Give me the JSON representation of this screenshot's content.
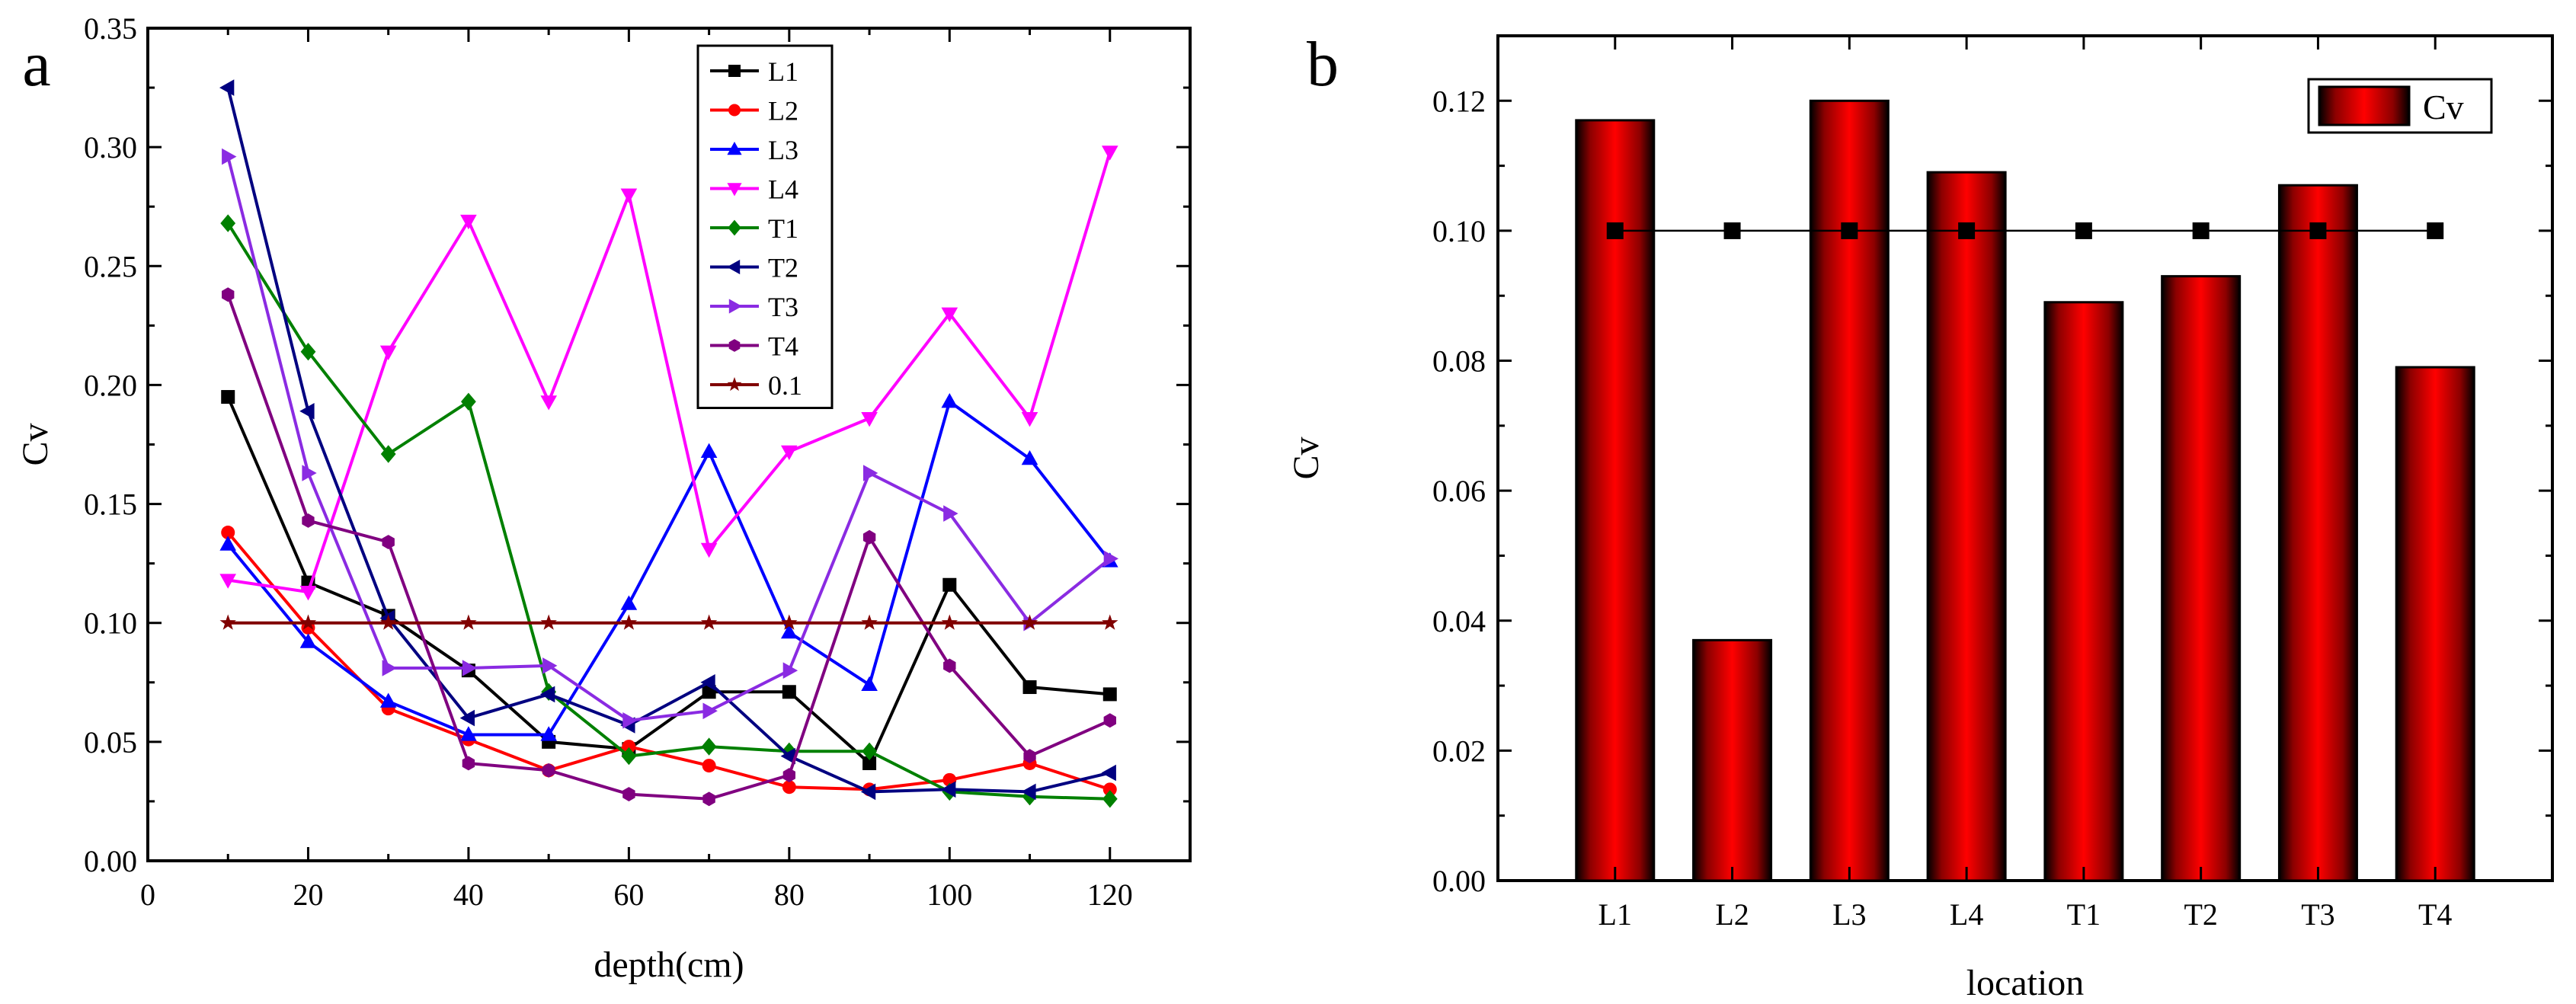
{
  "chart_data": [
    {
      "type": "line",
      "panel_label": "a",
      "xlabel": "depth(cm)",
      "ylabel": "Cv",
      "xlim": [
        0,
        130
      ],
      "ylim": [
        0,
        0.35
      ],
      "xticks": [
        0,
        20,
        40,
        60,
        80,
        100,
        120
      ],
      "xtick_labels": [
        "0",
        "20",
        "40",
        "60",
        "80",
        "100",
        "120"
      ],
      "yticks": [
        0,
        0.05,
        0.1,
        0.15,
        0.2,
        0.25,
        0.3,
        0.35
      ],
      "ytick_labels": [
        "0.00",
        "0.05",
        "0.10",
        "0.15",
        "0.20",
        "0.25",
        "0.30",
        "0.35"
      ],
      "x": [
        10,
        20,
        30,
        40,
        50,
        60,
        70,
        80,
        90,
        100,
        110,
        120
      ],
      "legend_position": "top-center",
      "series": [
        {
          "name": "L1",
          "color": "#000000",
          "marker": "square",
          "values": [
            0.195,
            0.117,
            0.103,
            0.08,
            0.05,
            0.047,
            0.071,
            0.071,
            0.041,
            0.116,
            0.073,
            0.07
          ]
        },
        {
          "name": "L2",
          "color": "#ff0000",
          "marker": "circle",
          "values": [
            0.138,
            0.098,
            0.064,
            0.051,
            0.038,
            0.048,
            0.04,
            0.031,
            0.03,
            0.034,
            0.041,
            0.03
          ]
        },
        {
          "name": "L3",
          "color": "#0000ff",
          "marker": "triangle-up",
          "values": [
            0.133,
            0.092,
            0.067,
            0.053,
            0.053,
            0.108,
            0.172,
            0.096,
            0.074,
            0.193,
            0.169,
            0.126
          ]
        },
        {
          "name": "L4",
          "color": "#ff00ff",
          "marker": "triangle-down",
          "values": [
            0.118,
            0.113,
            0.214,
            0.269,
            0.193,
            0.28,
            0.131,
            0.172,
            0.186,
            0.23,
            0.186,
            0.298
          ]
        },
        {
          "name": "T1",
          "color": "#008000",
          "marker": "diamond",
          "values": [
            0.268,
            0.214,
            0.171,
            0.193,
            0.071,
            0.044,
            0.048,
            0.046,
            0.046,
            0.029,
            0.027,
            0.026
          ]
        },
        {
          "name": "T2",
          "color": "#000080",
          "marker": "triangle-left",
          "values": [
            0.325,
            0.189,
            0.102,
            0.06,
            0.07,
            0.057,
            0.075,
            0.044,
            0.029,
            0.03,
            0.029,
            0.037
          ]
        },
        {
          "name": "T3",
          "color": "#8a2be2",
          "marker": "triangle-right",
          "values": [
            0.296,
            0.163,
            0.081,
            0.081,
            0.082,
            0.059,
            0.063,
            0.08,
            0.163,
            0.146,
            0.1,
            0.127
          ]
        },
        {
          "name": "T4",
          "color": "#800080",
          "marker": "hexagon",
          "values": [
            0.238,
            0.143,
            0.134,
            0.041,
            0.038,
            0.028,
            0.026,
            0.036,
            0.136,
            0.082,
            0.044,
            0.059
          ]
        },
        {
          "name": "0.1",
          "color": "#800000",
          "marker": "star",
          "values": [
            0.1,
            0.1,
            0.1,
            0.1,
            0.1,
            0.1,
            0.1,
            0.1,
            0.1,
            0.1,
            0.1,
            0.1
          ]
        }
      ]
    },
    {
      "type": "bar",
      "panel_label": "b",
      "xlabel": "location",
      "ylabel": "Cv",
      "ylim": [
        0,
        0.13
      ],
      "yticks": [
        0,
        0.02,
        0.04,
        0.06,
        0.08,
        0.1,
        0.12
      ],
      "ytick_labels": [
        "0.00",
        "0.02",
        "0.04",
        "0.06",
        "0.08",
        "0.10",
        "0.12"
      ],
      "categories": [
        "L1",
        "L2",
        "L3",
        "L4",
        "T1",
        "T2",
        "T3",
        "T4"
      ],
      "legend_position": "top-right",
      "series": [
        {
          "name": "Cv",
          "color": "#ff0000",
          "values": [
            0.117,
            0.037,
            0.12,
            0.109,
            0.089,
            0.093,
            0.107,
            0.079
          ]
        }
      ],
      "reference_line": {
        "value": 0.1,
        "color": "#000000",
        "marker": "square"
      }
    }
  ]
}
